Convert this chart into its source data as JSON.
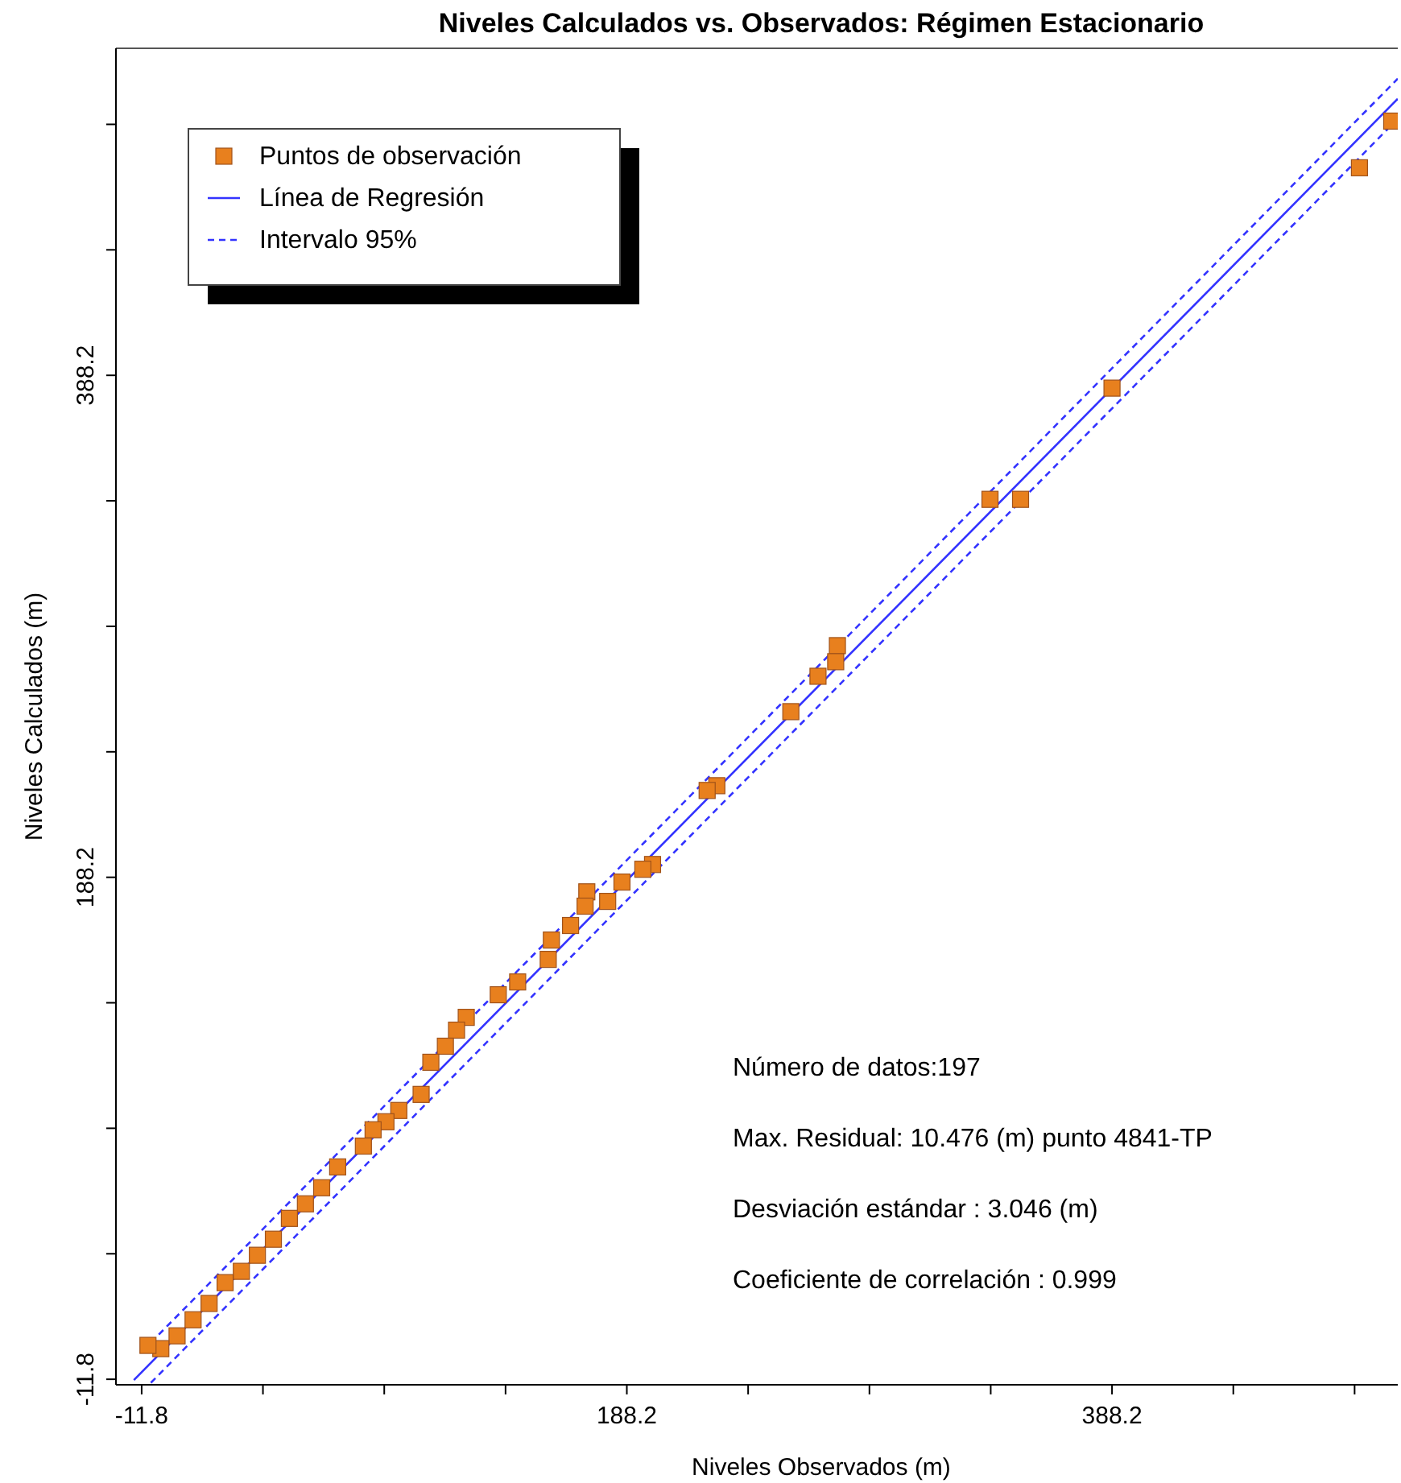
{
  "chart_data": {
    "type": "scatter",
    "title": "Niveles Calculados vs. Observados: Régimen Estacionario",
    "xlabel": "Niveles Observados (m)",
    "ylabel": "Niveles Calculados (m)",
    "xlim": [
      -22.4,
      506
    ],
    "ylim": [
      -14,
      518.5
    ],
    "xticks": [
      -11.8,
      {
        "value": 38.2,
        "label": null
      },
      {
        "value": 88.2,
        "label": null
      },
      {
        "value": 138.2,
        "label": null
      },
      188.2,
      {
        "value": 238.2,
        "label": null
      },
      {
        "value": 288.2,
        "label": null
      },
      {
        "value": 338.2,
        "label": null
      },
      388.2,
      {
        "value": 438.2,
        "label": null
      },
      {
        "value": 488.2,
        "label": null
      }
    ],
    "yticks": [
      -11.8,
      {
        "value": 38.2,
        "label": null
      },
      {
        "value": 88.2,
        "label": null
      },
      {
        "value": 138.2,
        "label": null
      },
      188.2,
      {
        "value": 238.2,
        "label": null
      },
      {
        "value": 288.2,
        "label": null
      },
      {
        "value": 338.2,
        "label": null
      },
      388.2,
      {
        "value": 438.2,
        "label": null
      },
      {
        "value": 488.2,
        "label": null
      }
    ],
    "grid": false,
    "legend": "top left",
    "series": [
      {
        "name": "Puntos de observación",
        "marker": "square",
        "color": "#e8801e",
        "x": [
          503.5,
          490.2,
          388.2,
          337.9,
          350.5,
          275.0,
          274.3,
          267.0,
          255.8,
          225.3,
          221.3,
          198.8,
          194.8,
          186.2,
          180.3,
          171.7,
          171.0,
          165.0,
          157.1,
          155.8,
          143.2,
          135.2,
          122.0,
          118.0,
          113.4,
          107.4,
          103.4,
          94.2,
          88.9,
          83.6,
          79.6,
          69.0,
          62.4,
          55.7,
          49.1,
          42.5,
          35.9,
          29.3,
          22.6,
          16.0,
          9.4,
          2.8,
          -3.9,
          -9.2
        ],
        "values": [
          489.5,
          470.9,
          383.1,
          338.8,
          338.8,
          280.5,
          274.1,
          268.3,
          254.2,
          224.7,
          222.8,
          193.3,
          191.4,
          186.3,
          178.6,
          182.4,
          176.7,
          169.0,
          163.2,
          155.5,
          146.5,
          141.4,
          132.4,
          127.3,
          120.9,
          114.5,
          101.7,
          95.3,
          90.8,
          87.6,
          81.1,
          72.8,
          64.5,
          58.1,
          52.3,
          44.0,
          37.6,
          31.2,
          26.7,
          18.4,
          11.9,
          5.5,
          0.4,
          1.7
        ]
      },
      {
        "name": "Línea de Regresión",
        "type": "line",
        "line_style": "solid",
        "color": "#3333ff",
        "x": [
          -15,
          506
        ],
        "values": [
          -12.1,
          498.4
        ]
      },
      {
        "name": "Intervalo 95%",
        "type": "line",
        "line_style": "dashed",
        "color": "#3333ff",
        "x": [
          -8,
          506
        ],
        "values": [
          2.8,
          506.4
        ]
      },
      {
        "type": "line",
        "line_style": "dashed",
        "color": "#3333ff",
        "x": [
          -8,
          506
        ],
        "values": [
          -13.2,
          490.4
        ]
      }
    ],
    "annotations": [
      "Número de datos:197",
      "Max. Residual: 10.476 (m) punto 4841-TP",
      "Desviación estándar : 3.046 (m)",
      "Coeficiente de correlación : 0.999"
    ]
  }
}
